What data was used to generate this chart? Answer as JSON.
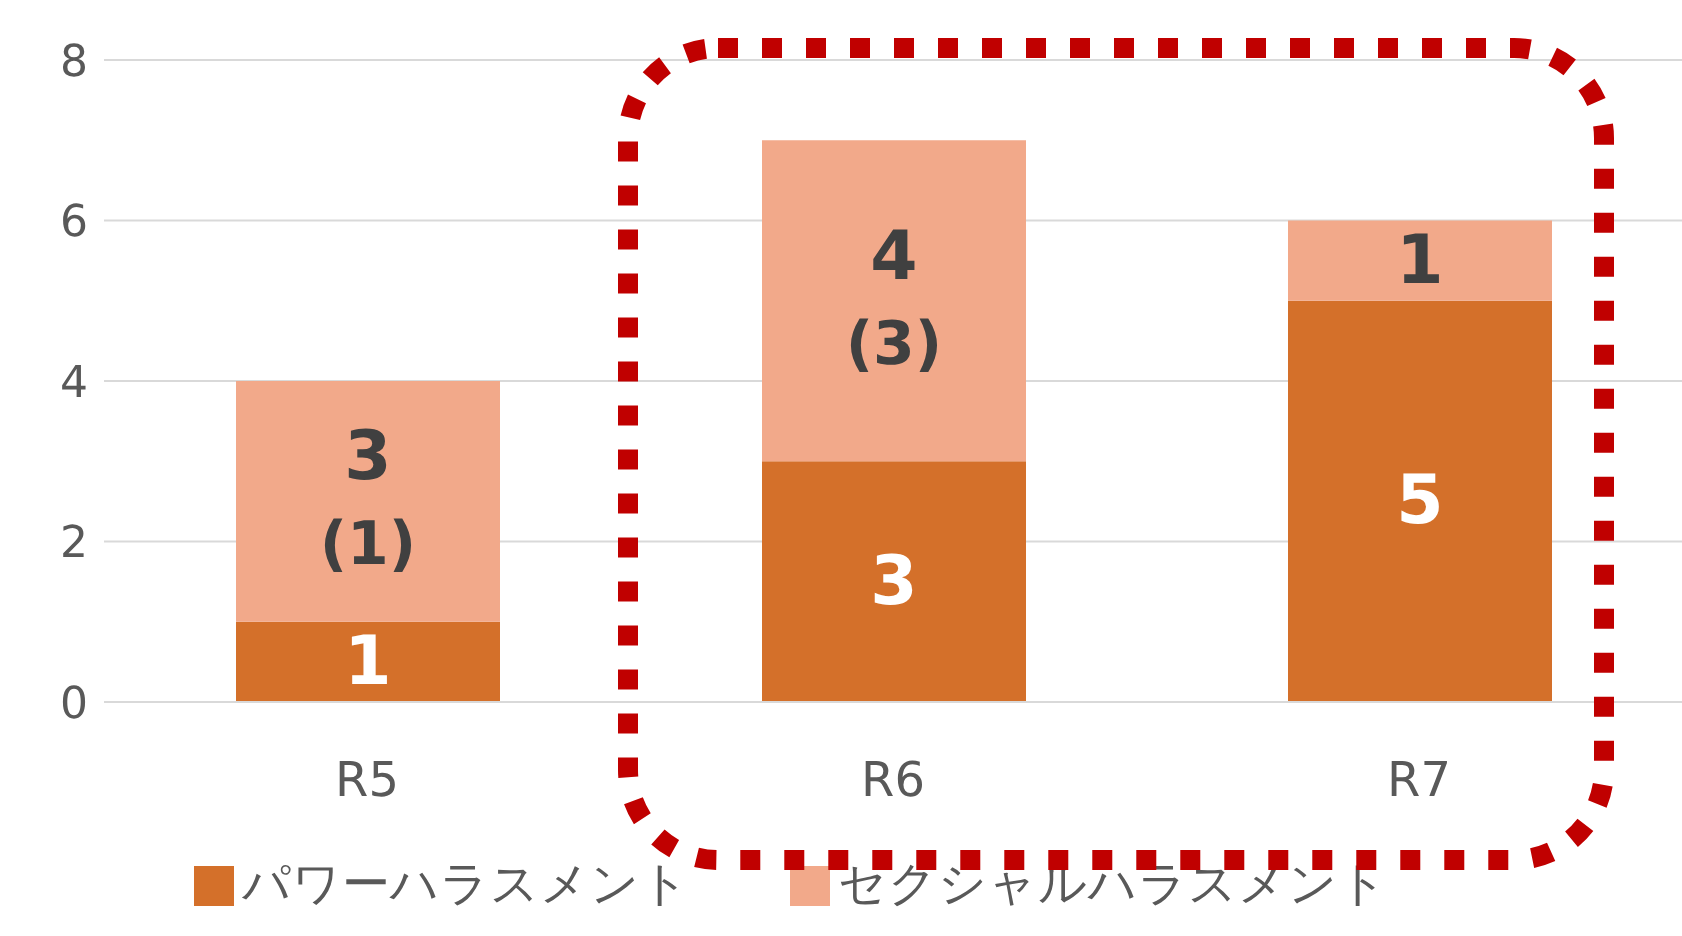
{
  "chart_data": {
    "type": "bar",
    "stacked": true,
    "categories": [
      "R5",
      "R6",
      "R7"
    ],
    "series": [
      {
        "name": "パワーハラスメント",
        "color": "#d4702a",
        "values": [
          1,
          3,
          5
        ]
      },
      {
        "name": "セクシャルハラスメント",
        "color": "#f2a98a",
        "values": [
          3,
          4,
          1
        ]
      }
    ],
    "data_labels": true,
    "annotations": [
      "(1)",
      "(3)"
    ],
    "ylim": [
      0,
      8
    ],
    "yticks": [
      0,
      2,
      4,
      6,
      8
    ],
    "grid": "y",
    "legend": "bottom"
  }
}
